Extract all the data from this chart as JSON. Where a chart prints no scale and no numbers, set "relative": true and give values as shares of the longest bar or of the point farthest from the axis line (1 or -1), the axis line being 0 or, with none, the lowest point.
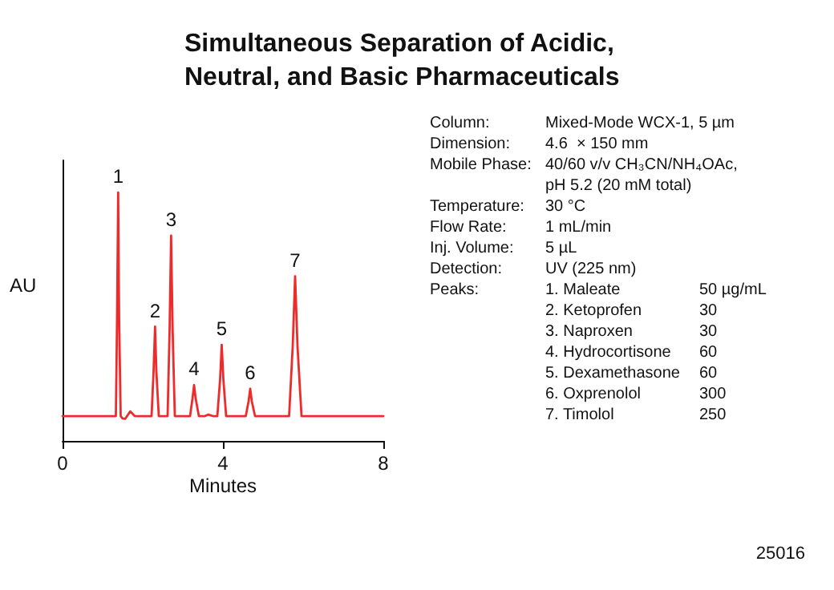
{
  "chart_data": {
    "type": "line",
    "title": "Simultaneous Separation of Acidic, Neutral, and Basic Pharmaceuticals",
    "xlabel": "Minutes",
    "ylabel": "AU",
    "relative": true,
    "xlim": [
      0,
      8
    ],
    "xticks": [
      0,
      4,
      8
    ],
    "marker": "none",
    "line_style": "solid",
    "series": [
      {
        "color": "#ee2a2a",
        "x": [
          0,
          1.0,
          1.33,
          1.36,
          1.387,
          1.41,
          1.45,
          1.5,
          1.56,
          1.69,
          1.8,
          2.22,
          2.27,
          2.307,
          2.34,
          2.4,
          2.62,
          2.67,
          2.707,
          2.745,
          2.8,
          3.18,
          3.24,
          3.28,
          3.32,
          3.4,
          3.55,
          3.63,
          3.75,
          3.86,
          3.93,
          3.97,
          4.01,
          4.08,
          4.57,
          4.64,
          4.68,
          4.72,
          4.8,
          5.65,
          5.74,
          5.8,
          5.86,
          5.96,
          8
        ],
        "values": [
          0.1,
          0.1,
          0.1,
          0.5,
          1.0,
          0.5,
          0.1,
          0.09,
          0.089,
          0.119,
          0.1,
          0.1,
          0.28,
          0.46,
          0.28,
          0.1,
          0.1,
          0.45,
          0.827,
          0.45,
          0.1,
          0.1,
          0.17,
          0.225,
          0.17,
          0.1,
          0.1,
          0.106,
          0.1,
          0.1,
          0.25,
          0.387,
          0.25,
          0.1,
          0.1,
          0.16,
          0.21,
          0.16,
          0.1,
          0.1,
          0.38,
          0.663,
          0.38,
          0.1,
          0.1
        ]
      }
    ],
    "annotations": [
      {
        "text": "1",
        "x": 1.387,
        "y": 1.0
      },
      {
        "text": "2",
        "x": 2.307,
        "y": 0.46
      },
      {
        "text": "3",
        "x": 2.707,
        "y": 0.827
      },
      {
        "text": "4",
        "x": 3.28,
        "y": 0.225
      },
      {
        "text": "5",
        "x": 3.97,
        "y": 0.387
      },
      {
        "text": "6",
        "x": 4.68,
        "y": 0.21
      },
      {
        "text": "7",
        "x": 5.8,
        "y": 0.663
      },
      "Column:\tMixed-Mode WCX-1, 5 µm",
      "Dimension:\t4.6  × 150 mm",
      "Mobile Phase:\t40/60 v/v CH₃CN/NH₄OAc,",
      "\tpH 5.2 (20 mM total)",
      "Temperature:\t30 °C",
      "Flow Rate:\t1 mL/min",
      "Inj. Volume:\t5 µL",
      "Detection:\tUV (225 nm)",
      "Peaks:\t1. Maleate\t50 µg/mL",
      "\t2. Ketoprofen\t30",
      "\t3. Naproxen\t30",
      "\t4. Hydrocortisone\t60",
      "\t5. Dexamethasone\t60",
      "\t6. Oxprenolol\t300",
      "\t7. Timolol\t250",
      "25016"
    ]
  }
}
